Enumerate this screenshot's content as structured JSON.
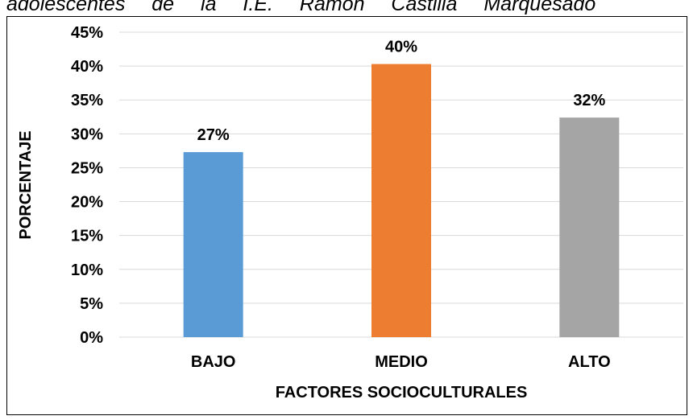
{
  "caption": "adolescentes de la I.E. Ramón Castilla Marquesado",
  "chart_data": {
    "type": "bar",
    "title": "",
    "xlabel": "FACTORES SOCIOCULTURALES",
    "ylabel": "PORCENTAJE",
    "categories": [
      "BAJO",
      "MEDIO",
      "ALTO"
    ],
    "values": [
      0.273,
      0.403,
      0.324
    ],
    "data_labels": [
      "27%",
      "40%",
      "32%"
    ],
    "colors": [
      "#5B9BD5",
      "#ED7D31",
      "#A5A5A5"
    ],
    "ylim": [
      0,
      0.45
    ],
    "yticks": [
      0,
      0.05,
      0.1,
      0.15,
      0.2,
      0.25,
      0.3,
      0.35,
      0.4,
      0.45
    ],
    "ytick_labels": [
      "0%",
      "5%",
      "10%",
      "15%",
      "20%",
      "25%",
      "30%",
      "35%",
      "40%",
      "45%"
    ],
    "grid": true,
    "gridline_color": "#D9D9D9",
    "legend": "none"
  }
}
